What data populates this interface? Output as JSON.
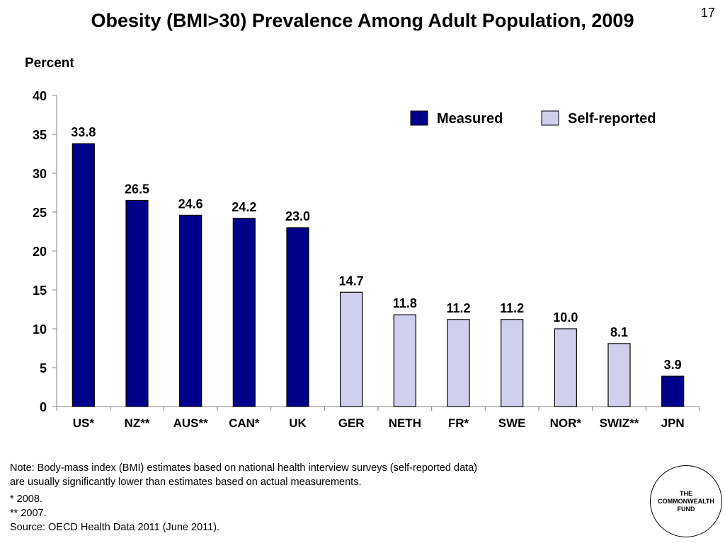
{
  "slide": {
    "title": "Obesity (BMI>30) Prevalence Among Adult Population, 2009",
    "page_number": "17"
  },
  "chart_data": {
    "type": "bar",
    "title": "Obesity (BMI>30) Prevalence Among Adult Population, 2009",
    "ylabel": "Percent",
    "xlabel": "",
    "ylim": [
      0,
      40
    ],
    "yticks": [
      0,
      5,
      10,
      15,
      20,
      25,
      30,
      35,
      40
    ],
    "grid": false,
    "legend_position": "top-right",
    "categories": [
      "US*",
      "NZ**",
      "AUS**",
      "CAN*",
      "UK",
      "GER",
      "NETH",
      "FR*",
      "SWE",
      "NOR*",
      "SWIZ**",
      "JPN"
    ],
    "values": [
      33.8,
      26.5,
      24.6,
      24.2,
      23.0,
      14.7,
      11.8,
      11.2,
      11.2,
      10.0,
      8.1,
      3.9
    ],
    "value_labels": [
      "33.8",
      "26.5",
      "24.6",
      "24.2",
      "23.0",
      "14.7",
      "11.8",
      "11.2",
      "11.2",
      "10.0",
      "8.1",
      "3.9"
    ],
    "bar_type": [
      "measured",
      "measured",
      "measured",
      "measured",
      "measured",
      "self",
      "self",
      "self",
      "self",
      "self",
      "self",
      "measured"
    ],
    "legend": [
      {
        "key": "measured",
        "label": "Measured",
        "color": "#00008B"
      },
      {
        "key": "self",
        "label": "Self-reported",
        "color": "#D0D0EE"
      }
    ]
  },
  "notes": {
    "line1": "Note: Body-mass index (BMI) estimates based on national health interview surveys (self-reported data)",
    "line2": "are usually significantly lower than estimates based on actual measurements.",
    "footnote1": "* 2008.",
    "footnote2": "** 2007.",
    "source": "Source: OECD Health Data 2011 (June 2011)."
  },
  "logo": {
    "text": "THE\nCOMMONWEALTH\nFUND"
  }
}
